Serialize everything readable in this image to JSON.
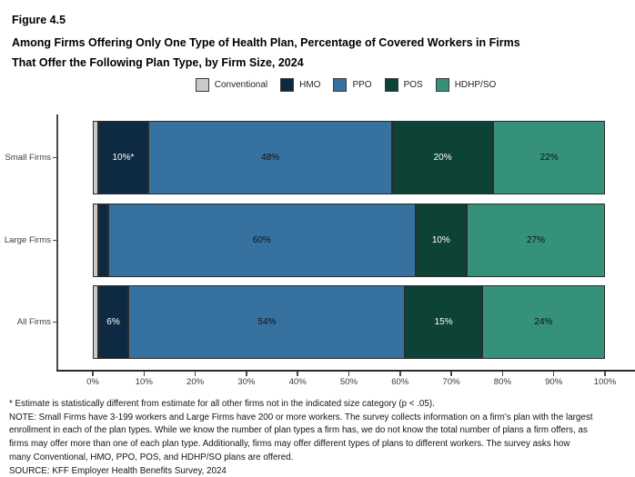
{
  "figure": {
    "label": "Figure 4.5",
    "title_line1": "Among Firms Offering Only One Type of Health Plan, Percentage of Covered Workers in Firms",
    "title_line2": "That Offer the Following Plan Type, by Firm Size, 2024"
  },
  "chart_data": {
    "type": "bar",
    "orientation": "horizontal",
    "stacked": true,
    "title": "Among Firms Offering Only One Type of Health Plan, Percentage of Covered Workers in Firms That Offer the Following Plan Type, by Firm Size, 2024",
    "categories": [
      "Small Firms",
      "Large Firms",
      "All Firms"
    ],
    "series": [
      {
        "name": "Conventional",
        "color": "#c9c9c9",
        "label_color": "#1a1a1a",
        "values": [
          1,
          1,
          1
        ],
        "labels": [
          "",
          "",
          ""
        ]
      },
      {
        "name": "HMO",
        "color": "#0e2a42",
        "label_color": "#ffffff",
        "values": [
          10,
          2,
          6
        ],
        "labels": [
          "10%*",
          "",
          "6%"
        ]
      },
      {
        "name": "PPO",
        "color": "#36719f",
        "label_color": "#121212",
        "values": [
          48,
          60,
          54
        ],
        "labels": [
          "48%",
          "60%",
          "54%"
        ]
      },
      {
        "name": "POS",
        "color": "#0d4236",
        "label_color": "#ffffff",
        "values": [
          20,
          10,
          15
        ],
        "labels": [
          "20%",
          "10%",
          "15%"
        ]
      },
      {
        "name": "HDHP/SO",
        "color": "#35917a",
        "label_color": "#121212",
        "values": [
          22,
          27,
          24
        ],
        "labels": [
          "22%",
          "27%",
          "24%"
        ]
      }
    ],
    "xlabel": "",
    "ylabel": "",
    "xlim": [
      0,
      100
    ],
    "x_ticks": [
      "0%",
      "10%",
      "20%",
      "30%",
      "40%",
      "50%",
      "60%",
      "70%",
      "80%",
      "90%",
      "100%"
    ],
    "legend_position": "top",
    "grid": false
  },
  "footnotes": {
    "lines": [
      "* Estimate is statistically different from estimate for all other firms not in the indicated size category (p < .05).",
      "NOTE: Small Firms have 3-199 workers and Large Firms have 200 or more workers. The survey collects information on a firm's plan with the largest",
      "enrollment in each of the plan types. While we know the number of plan types a firm has, we do not know the total number of plans a firm offers, as",
      "firms may offer more than one of each plan type. Additionally, firms may offer different types of plans to different workers. The survey asks how",
      "many Conventional, HMO, PPO, POS, and HDHP/SO plans are offered.",
      "SOURCE: KFF Employer Health Benefits Survey, 2024"
    ]
  }
}
